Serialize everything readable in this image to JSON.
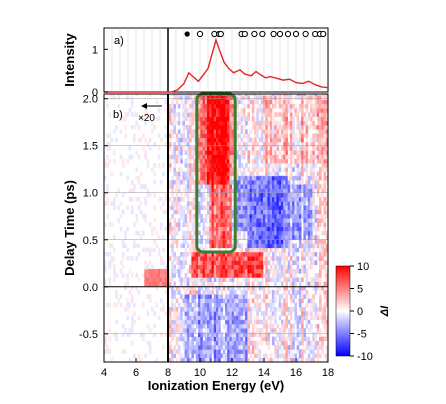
{
  "chart_data": [
    {
      "panel_label": "a)",
      "type": "line",
      "ylabel": "Intensity",
      "ylim": [
        0,
        1.5
      ],
      "yticks": [
        0,
        1
      ],
      "xlim": [
        4,
        18
      ],
      "series": [
        {
          "color": "#e8262a",
          "x": [
            4,
            8.2,
            8.6,
            9.0,
            9.3,
            9.6,
            9.9,
            10.2,
            10.5,
            10.8,
            11.0,
            11.2,
            11.5,
            11.8,
            12.1,
            12.5,
            12.8,
            13.2,
            13.5,
            13.8,
            14.1,
            14.4,
            14.8,
            15.2,
            15.6,
            16.0,
            16.4,
            16.8,
            17.2,
            17.6,
            18.0
          ],
          "y": [
            0.0,
            0.0,
            0.05,
            0.2,
            0.45,
            0.35,
            0.25,
            0.4,
            0.55,
            0.95,
            1.22,
            1.0,
            0.7,
            0.55,
            0.45,
            0.52,
            0.42,
            0.38,
            0.48,
            0.4,
            0.33,
            0.36,
            0.32,
            0.28,
            0.3,
            0.22,
            0.2,
            0.25,
            0.17,
            0.12,
            0.1
          ]
        }
      ],
      "markers": {
        "filled": [
          9.2
        ],
        "open": [
          10.0,
          10.9,
          11.2,
          11.3,
          12.6,
          12.8,
          13.4,
          13.9,
          14.6,
          15.0,
          15.5,
          16.0,
          16.6,
          17.2,
          17.5,
          17.7
        ]
      },
      "vertical_line_x": 8.0
    },
    {
      "panel_label": "b)",
      "type": "heatmap",
      "xlabel": "Ionization Energy (eV)",
      "ylabel": "Delay Time (ps)",
      "xlim": [
        4,
        18
      ],
      "ylim": [
        -0.8,
        2.05
      ],
      "xticks": [
        4,
        6,
        8,
        10,
        12,
        14,
        16,
        18
      ],
      "yticks": [
        "-0.5",
        "0.0",
        "0.5",
        "1.0",
        "1.5",
        "2.0"
      ],
      "colorbar": {
        "label": "ΔI",
        "range": [
          -10,
          10
        ],
        "ticks": [
          "10",
          "5",
          "0",
          "-5",
          "-10"
        ],
        "colors": [
          "#0000ff",
          "#ffffff",
          "#ff0000"
        ]
      },
      "annotation": {
        "text": "×20",
        "arrow": "left"
      },
      "highlight_box": {
        "x": [
          9.8,
          12.2
        ],
        "y": [
          0.37,
          2.05
        ],
        "color": "#3e7d2e"
      },
      "vertical_line_x": 8.0,
      "regions": [
        {
          "x": [
            10.5,
            11.8
          ],
          "y": [
            1.1,
            2.05
          ],
          "value": 10
        },
        {
          "x": [
            9.8,
            10.5
          ],
          "y": [
            1.1,
            2.05
          ],
          "value": 6
        },
        {
          "x": [
            11.8,
            12.3
          ],
          "y": [
            1.2,
            2.05
          ],
          "value": 5
        },
        {
          "x": [
            10.6,
            12.0
          ],
          "y": [
            0.4,
            1.1
          ],
          "value": 6
        },
        {
          "x": [
            12.3,
            13.0
          ],
          "y": [
            0.6,
            1.2
          ],
          "value": -4
        },
        {
          "x": [
            13.0,
            15.5
          ],
          "y": [
            0.4,
            1.2
          ],
          "value": -6
        },
        {
          "x": [
            15.5,
            17.0
          ],
          "y": [
            0.5,
            1.1
          ],
          "value": -3
        },
        {
          "x": [
            9.5,
            14.0
          ],
          "y": [
            0.1,
            0.35
          ],
          "value": 7
        },
        {
          "x": [
            6.5,
            8.0
          ],
          "y": [
            0.0,
            0.2
          ],
          "value": 5
        },
        {
          "x": [
            9.0,
            13.0
          ],
          "y": [
            -0.8,
            -0.1
          ],
          "value": -3
        },
        {
          "x": [
            14.0,
            18.0
          ],
          "y": [
            1.3,
            2.05
          ],
          "value": 2
        }
      ]
    }
  ]
}
